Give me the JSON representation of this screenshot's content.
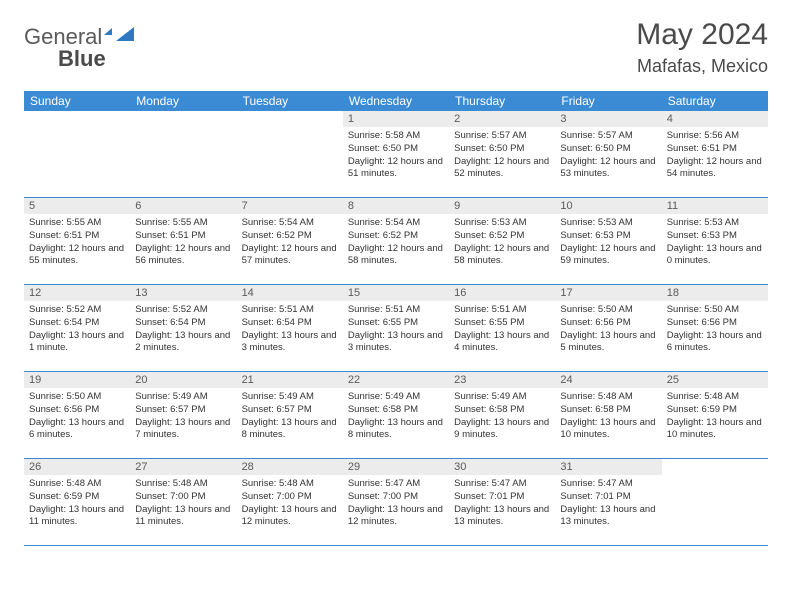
{
  "brand": {
    "name1": "General",
    "name2": "Blue"
  },
  "title": "May 2024",
  "location": "Mafafas, Mexico",
  "colors": {
    "header_bg": "#3b8bd4",
    "header_text": "#ffffff",
    "daynum_bg": "#ececec",
    "border": "#3b8bd4",
    "text": "#333333",
    "logo_shape": "#2f79c2"
  },
  "weekdays": [
    "Sunday",
    "Monday",
    "Tuesday",
    "Wednesday",
    "Thursday",
    "Friday",
    "Saturday"
  ],
  "weeks": [
    [
      {
        "n": "",
        "sr": "",
        "ss": "",
        "dl": ""
      },
      {
        "n": "",
        "sr": "",
        "ss": "",
        "dl": ""
      },
      {
        "n": "",
        "sr": "",
        "ss": "",
        "dl": ""
      },
      {
        "n": "1",
        "sr": "5:58 AM",
        "ss": "6:50 PM",
        "dl": "12 hours and 51 minutes."
      },
      {
        "n": "2",
        "sr": "5:57 AM",
        "ss": "6:50 PM",
        "dl": "12 hours and 52 minutes."
      },
      {
        "n": "3",
        "sr": "5:57 AM",
        "ss": "6:50 PM",
        "dl": "12 hours and 53 minutes."
      },
      {
        "n": "4",
        "sr": "5:56 AM",
        "ss": "6:51 PM",
        "dl": "12 hours and 54 minutes."
      }
    ],
    [
      {
        "n": "5",
        "sr": "5:55 AM",
        "ss": "6:51 PM",
        "dl": "12 hours and 55 minutes."
      },
      {
        "n": "6",
        "sr": "5:55 AM",
        "ss": "6:51 PM",
        "dl": "12 hours and 56 minutes."
      },
      {
        "n": "7",
        "sr": "5:54 AM",
        "ss": "6:52 PM",
        "dl": "12 hours and 57 minutes."
      },
      {
        "n": "8",
        "sr": "5:54 AM",
        "ss": "6:52 PM",
        "dl": "12 hours and 58 minutes."
      },
      {
        "n": "9",
        "sr": "5:53 AM",
        "ss": "6:52 PM",
        "dl": "12 hours and 58 minutes."
      },
      {
        "n": "10",
        "sr": "5:53 AM",
        "ss": "6:53 PM",
        "dl": "12 hours and 59 minutes."
      },
      {
        "n": "11",
        "sr": "5:53 AM",
        "ss": "6:53 PM",
        "dl": "13 hours and 0 minutes."
      }
    ],
    [
      {
        "n": "12",
        "sr": "5:52 AM",
        "ss": "6:54 PM",
        "dl": "13 hours and 1 minute."
      },
      {
        "n": "13",
        "sr": "5:52 AM",
        "ss": "6:54 PM",
        "dl": "13 hours and 2 minutes."
      },
      {
        "n": "14",
        "sr": "5:51 AM",
        "ss": "6:54 PM",
        "dl": "13 hours and 3 minutes."
      },
      {
        "n": "15",
        "sr": "5:51 AM",
        "ss": "6:55 PM",
        "dl": "13 hours and 3 minutes."
      },
      {
        "n": "16",
        "sr": "5:51 AM",
        "ss": "6:55 PM",
        "dl": "13 hours and 4 minutes."
      },
      {
        "n": "17",
        "sr": "5:50 AM",
        "ss": "6:56 PM",
        "dl": "13 hours and 5 minutes."
      },
      {
        "n": "18",
        "sr": "5:50 AM",
        "ss": "6:56 PM",
        "dl": "13 hours and 6 minutes."
      }
    ],
    [
      {
        "n": "19",
        "sr": "5:50 AM",
        "ss": "6:56 PM",
        "dl": "13 hours and 6 minutes."
      },
      {
        "n": "20",
        "sr": "5:49 AM",
        "ss": "6:57 PM",
        "dl": "13 hours and 7 minutes."
      },
      {
        "n": "21",
        "sr": "5:49 AM",
        "ss": "6:57 PM",
        "dl": "13 hours and 8 minutes."
      },
      {
        "n": "22",
        "sr": "5:49 AM",
        "ss": "6:58 PM",
        "dl": "13 hours and 8 minutes."
      },
      {
        "n": "23",
        "sr": "5:49 AM",
        "ss": "6:58 PM",
        "dl": "13 hours and 9 minutes."
      },
      {
        "n": "24",
        "sr": "5:48 AM",
        "ss": "6:58 PM",
        "dl": "13 hours and 10 minutes."
      },
      {
        "n": "25",
        "sr": "5:48 AM",
        "ss": "6:59 PM",
        "dl": "13 hours and 10 minutes."
      }
    ],
    [
      {
        "n": "26",
        "sr": "5:48 AM",
        "ss": "6:59 PM",
        "dl": "13 hours and 11 minutes."
      },
      {
        "n": "27",
        "sr": "5:48 AM",
        "ss": "7:00 PM",
        "dl": "13 hours and 11 minutes."
      },
      {
        "n": "28",
        "sr": "5:48 AM",
        "ss": "7:00 PM",
        "dl": "13 hours and 12 minutes."
      },
      {
        "n": "29",
        "sr": "5:47 AM",
        "ss": "7:00 PM",
        "dl": "13 hours and 12 minutes."
      },
      {
        "n": "30",
        "sr": "5:47 AM",
        "ss": "7:01 PM",
        "dl": "13 hours and 13 minutes."
      },
      {
        "n": "31",
        "sr": "5:47 AM",
        "ss": "7:01 PM",
        "dl": "13 hours and 13 minutes."
      },
      {
        "n": "",
        "sr": "",
        "ss": "",
        "dl": ""
      }
    ]
  ],
  "labels": {
    "sunrise": "Sunrise:",
    "sunset": "Sunset:",
    "daylight": "Daylight:"
  }
}
